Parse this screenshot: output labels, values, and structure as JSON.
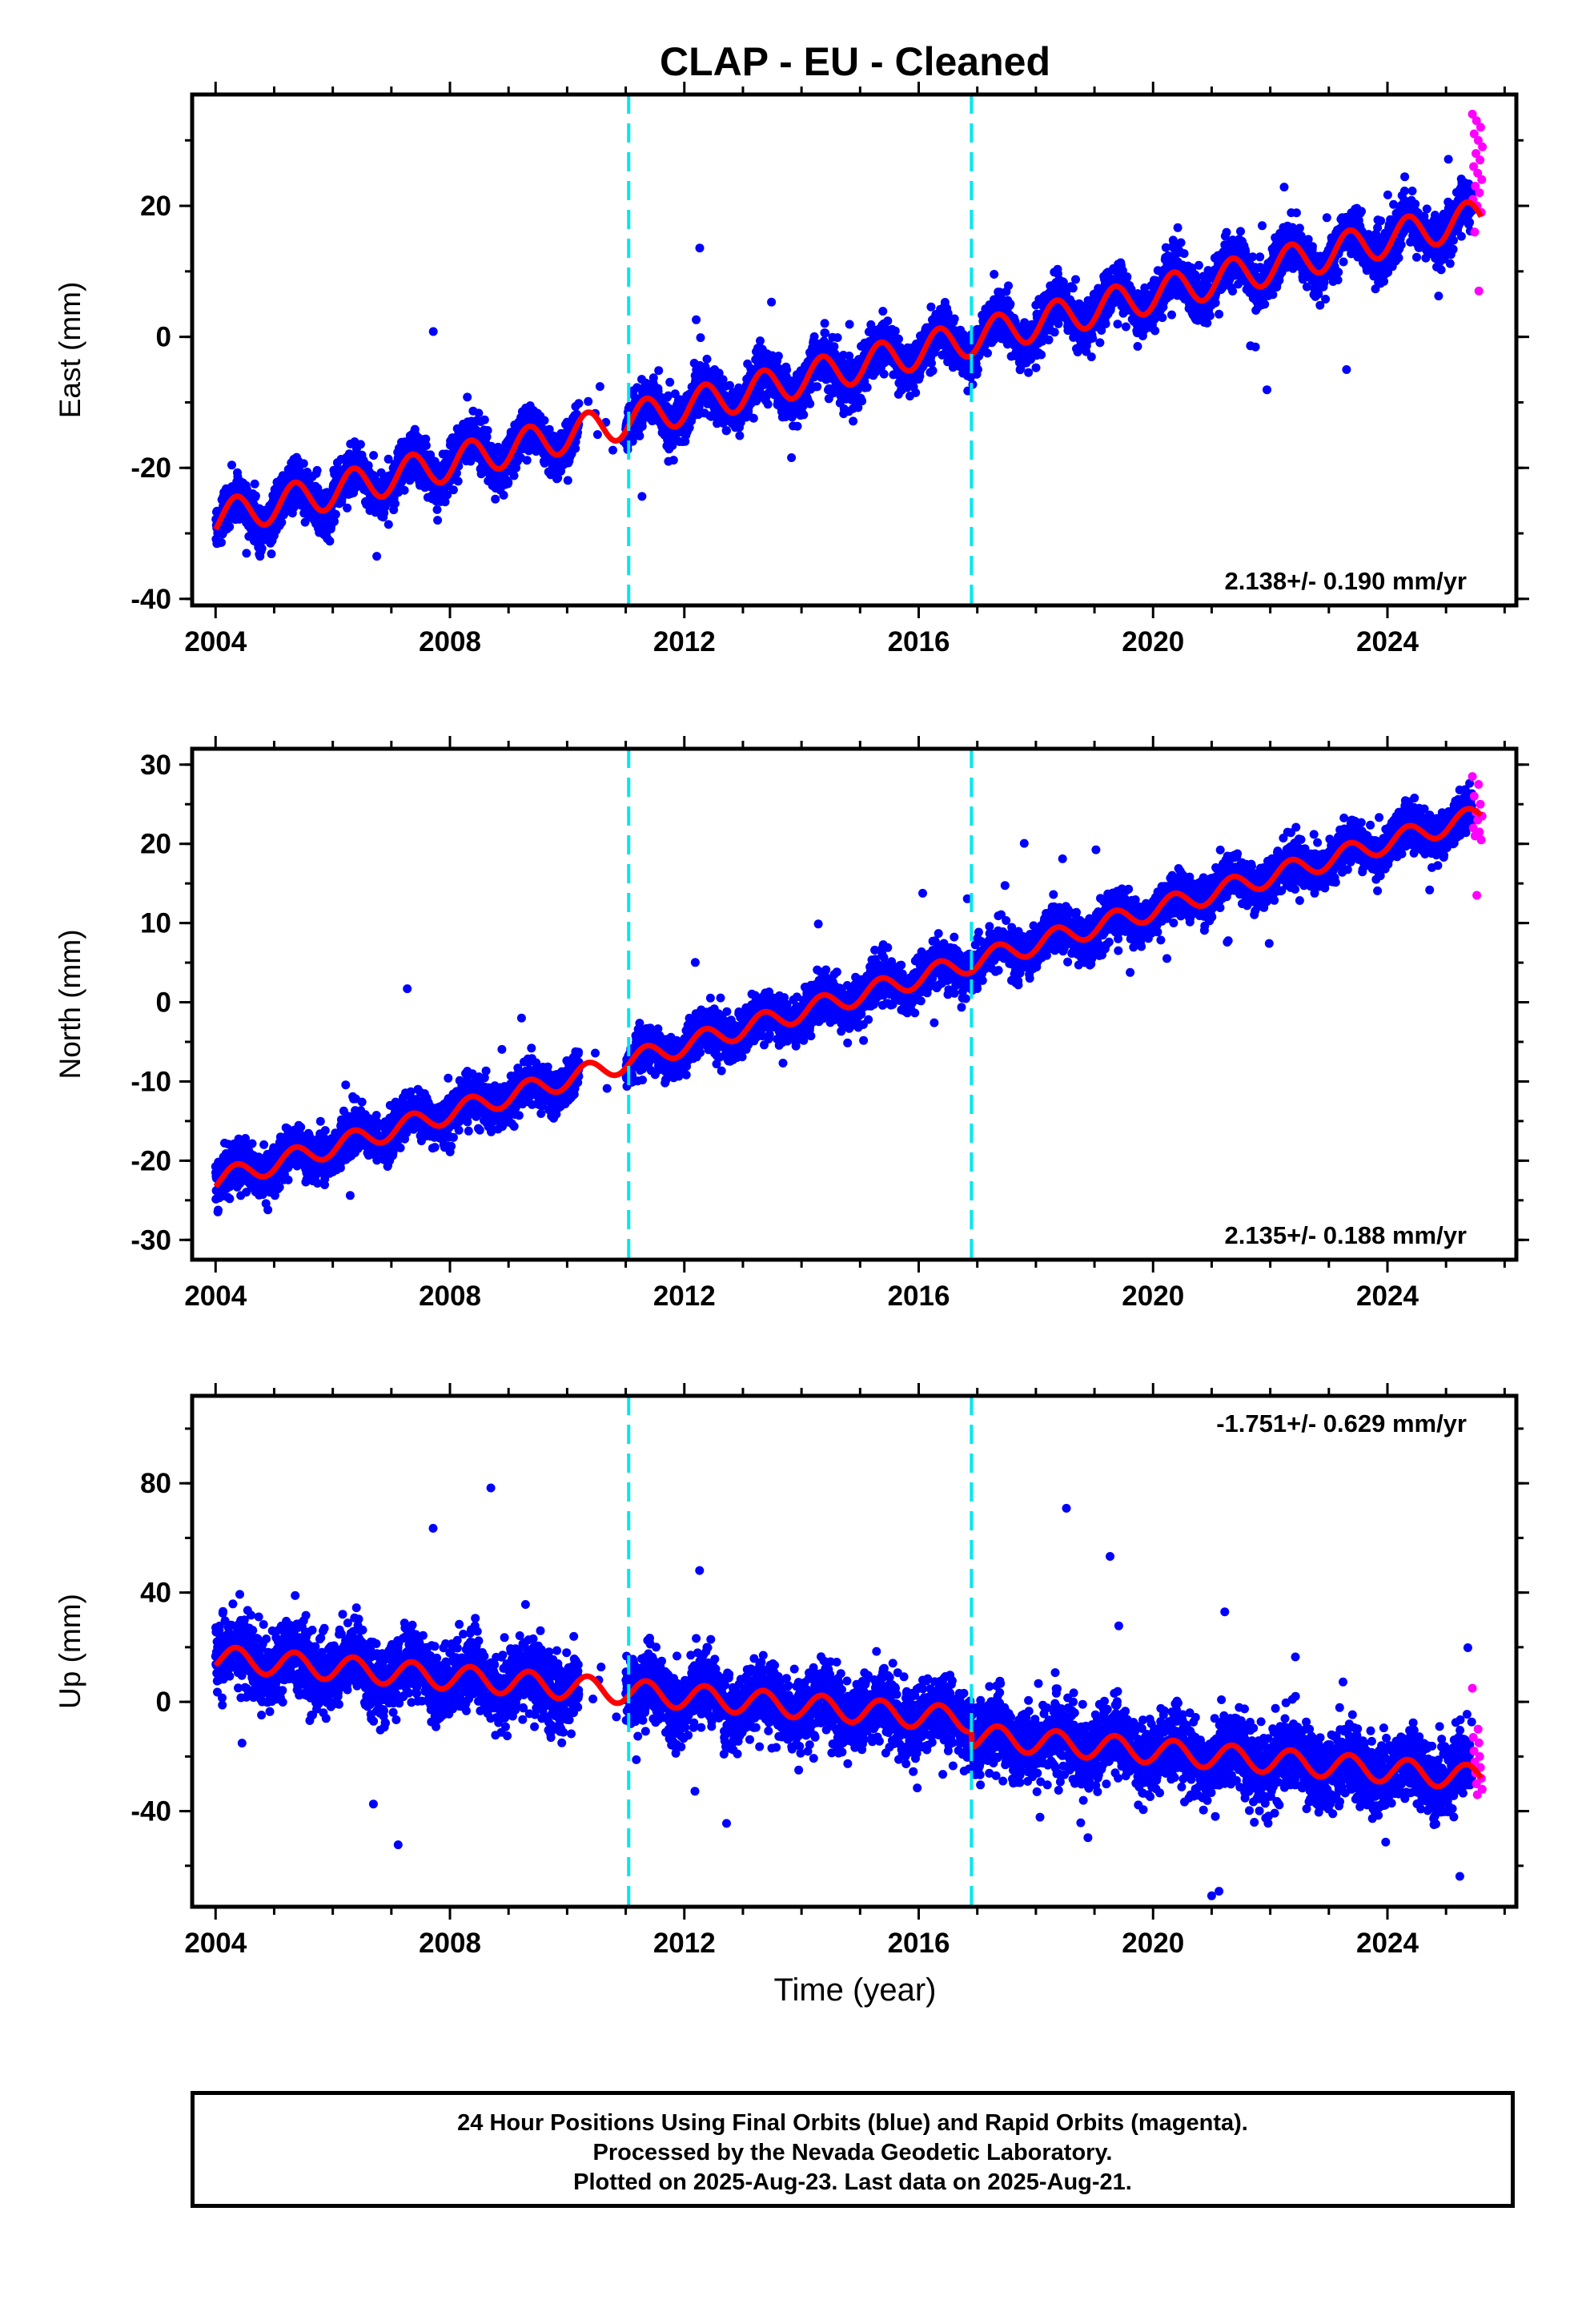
{
  "title": "CLAP  - EU - Cleaned",
  "chart_data": [
    {
      "type": "scatter",
      "component": "East",
      "ylabel": "East (mm)",
      "xlabel": "",
      "xlim": [
        2003.6,
        2026.2
      ],
      "ylim": [
        -41,
        37
      ],
      "xticks": [
        2004,
        2008,
        2012,
        2016,
        2020,
        2024
      ],
      "yticks": [
        -40,
        -20,
        0,
        20
      ],
      "rate_label": "2.138+/- 0.190 mm/yr",
      "rate_position": "bottom-right",
      "model": {
        "start": 2004.0,
        "end": 2025.6,
        "offset_at_start": -27.8,
        "rate": 2.138,
        "annual_amplitude": 2.7,
        "gap": [
          2010.2,
          2011.0
        ]
      },
      "breaks": [
        2011.05,
        2016.9
      ],
      "final_orbit_points": {
        "color": "#0000ff",
        "noise": 1.8,
        "rapid_outliers": []
      },
      "rapid_orbit_points": {
        "color": "#ff00ff",
        "x_range": [
          2025.45,
          2025.63
        ],
        "y": [
          34,
          33,
          32,
          31,
          30,
          29,
          28,
          27,
          26,
          25,
          24,
          23,
          22,
          21,
          20,
          19,
          16,
          7
        ]
      }
    },
    {
      "type": "scatter",
      "component": "North",
      "ylabel": "North (mm)",
      "xlabel": "",
      "xlim": [
        2003.6,
        2026.2
      ],
      "ylim": [
        -32.5,
        32
      ],
      "xticks": [
        2004,
        2008,
        2012,
        2016,
        2020,
        2024
      ],
      "yticks": [
        -30,
        -20,
        -10,
        0,
        10,
        20,
        30
      ],
      "rate_label": "2.135+/- 0.188 mm/yr",
      "rate_position": "bottom-right",
      "model": {
        "start": 2004.0,
        "end": 2025.6,
        "offset_at_start": -22.5,
        "rate": 2.135,
        "annual_amplitude": 1.3,
        "gap": [
          2010.2,
          2011.0
        ]
      },
      "breaks": [
        2011.05,
        2016.9
      ],
      "final_orbit_points": {
        "color": "#0000ff",
        "noise": 1.4
      },
      "rapid_orbit_points": {
        "color": "#ff00ff",
        "x_range": [
          2025.45,
          2025.63
        ],
        "y": [
          28.5,
          27.5,
          26,
          25,
          24,
          23.5,
          23,
          22,
          21.5,
          21,
          20.5,
          13.5
        ]
      }
    },
    {
      "type": "scatter",
      "component": "Up",
      "ylabel": "Up (mm)",
      "xlabel": "Time (year)",
      "xlim": [
        2003.6,
        2026.2
      ],
      "ylim": [
        -75,
        112
      ],
      "xticks": [
        2004,
        2008,
        2012,
        2016,
        2020,
        2024
      ],
      "yticks": [
        -40,
        0,
        40,
        80
      ],
      "rate_label": "-1.751+/- 0.629 mm/yr",
      "rate_position": "top-right",
      "model": {
        "start": 2004.0,
        "end": 2025.6,
        "offset_at_start": 16,
        "rate": -1.751,
        "annual_amplitude": 4.5,
        "gap": [
          2010.2,
          2011.0
        ],
        "steps": [
          {
            "at": 2016.9,
            "size": -6
          }
        ]
      },
      "breaks": [
        2011.05,
        2016.9
      ],
      "final_orbit_points": {
        "color": "#0000ff",
        "noise": 6.5
      },
      "rapid_orbit_points": {
        "color": "#ff00ff",
        "x_range": [
          2025.45,
          2025.63
        ],
        "y": [
          5,
          -10,
          -13,
          -15,
          -18,
          -20,
          -22,
          -24,
          -26,
          -28,
          -30,
          -32,
          -34
        ]
      }
    }
  ],
  "model_color": "#ff0000",
  "break_color": "#00e6f0",
  "footer": {
    "line1": "24 Hour Positions Using Final Orbits (blue) and Rapid Orbits (magenta).",
    "line2": "Processed by the Nevada Geodetic Laboratory.",
    "line3": "Plotted on 2025-Aug-23. Last data on 2025-Aug-21."
  }
}
